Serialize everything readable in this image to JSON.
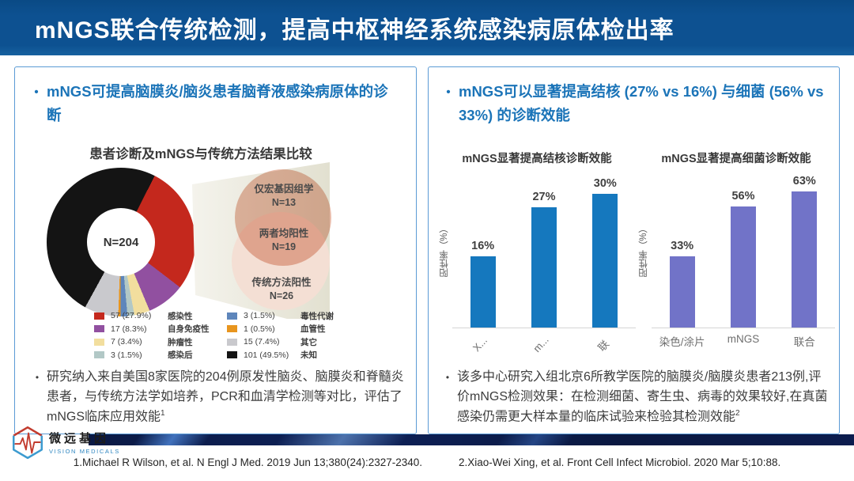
{
  "banner": {
    "title": "mNGS联合传统检测，提高中枢神经系统感染病原体检出率",
    "bg_color": "#0D5191",
    "text_color": "#FFFFFF"
  },
  "left_panel": {
    "bullet": "mNGS可提高脑膜炎/脑炎患者脑脊液感染病原体的诊断",
    "note": {
      "text": "研究纳入来自美国8家医院的204例原发性脑炎、脑膜炎和脊髓炎患者，与传统方法学如培养，PCR和血清学检测等对比，评估了mNGS临床应用效能",
      "citation": "1"
    }
  },
  "right_panel": {
    "bullet": "mNGS可以显著提高结核 (27%  vs 16%)  与细菌 (56%  vs 33%)  的诊断效能",
    "note": {
      "text": "该多中心研究入组北京6所教学医院的脑膜炎/脑膜炎患者213例,评价mNGS检测效果：在检测细菌、寄生虫、病毒的效果较好,在真菌感染仍需更大样本量的临床试验来检验其检测效能",
      "citation": "2"
    }
  },
  "chart_data": [
    {
      "type": "pie",
      "subtype": "donut-with-venn",
      "title": "患者诊断及mNGS与传统方法结果比较",
      "center_label": "N=204",
      "total_n": 204,
      "segments": [
        {
          "label": "感染性",
          "count": 57,
          "pct": 27.9,
          "display": "57 (27.9%)",
          "color": "#C4281D"
        },
        {
          "label": "自身免疫性",
          "count": 17,
          "pct": 8.3,
          "display": "17 (8.3%)",
          "color": "#9150A0"
        },
        {
          "label": "肿瘤性",
          "count": 7,
          "pct": 3.4,
          "display": "7 (3.4%)",
          "color": "#F2DE9E"
        },
        {
          "label": "感染后",
          "count": 3,
          "pct": 1.5,
          "display": "3 (1.5%)",
          "color": "#B2C8C6"
        },
        {
          "label": "毒性代谢",
          "count": 3,
          "pct": 1.5,
          "display": "3 (1.5%)",
          "color": "#5E86BB"
        },
        {
          "label": "血管性",
          "count": 1,
          "pct": 0.5,
          "display": "1 (0.5%)",
          "color": "#E8951E"
        },
        {
          "label": "其它",
          "count": 15,
          "pct": 7.4,
          "display": "15 (7.4%)",
          "color": "#C9C9CD"
        },
        {
          "label": "未知",
          "count": 101,
          "pct": 49.5,
          "display": "101 (49.5%)",
          "color": "#141414"
        }
      ],
      "legend_order": [
        0,
        1,
        2,
        3,
        4,
        5,
        6,
        7
      ],
      "venn": {
        "top_label": "仅宏基因组学",
        "top_n": "N=13",
        "top_color": "#E9BCAB",
        "mid_label": "两者均阳性",
        "mid_n": "N=19",
        "bottom_label": "传统方法阳性",
        "bottom_n": "N=26",
        "bottom_color": "#F4DFD4"
      }
    },
    {
      "type": "bar",
      "title": "mNGS显著提高结核诊断效能",
      "ylabel": "阳性率（%）",
      "categories": [
        "X...",
        "m...",
        "联"
      ],
      "values": [
        16,
        27,
        30
      ],
      "value_labels": [
        "16%",
        "27%",
        "30%"
      ],
      "bar_color": "#1578BE",
      "ylim": [
        0,
        35
      ],
      "grid": false,
      "legend": "none"
    },
    {
      "type": "bar",
      "title": "mNGS显著提高细菌诊断效能",
      "ylabel": "阳性率（%）",
      "categories": [
        "染色/涂片",
        "mNGS",
        "联合"
      ],
      "values": [
        33,
        56,
        63
      ],
      "value_labels": [
        "33%",
        "56%",
        "63%"
      ],
      "bar_color": "#7173C8",
      "ylim": [
        0,
        72
      ],
      "grid": false,
      "legend": "none"
    }
  ],
  "footer": {
    "logo": {
      "cn": "微远基因",
      "en": "VISION MEDICALS"
    },
    "reference_1": "1.Michael R Wilson, et al. N Engl J Med. 2019 Jun 13;380(24):2327-2340.",
    "reference_2": "2.Xiao-Wei Xing, et al. Front Cell Infect  Microbiol. 2020 Mar 5;10:88."
  },
  "colors": {
    "accent_blue": "#1B74B8",
    "panel_border": "#5B9BD5",
    "deco_bar_navy": "#0C1C4E"
  }
}
